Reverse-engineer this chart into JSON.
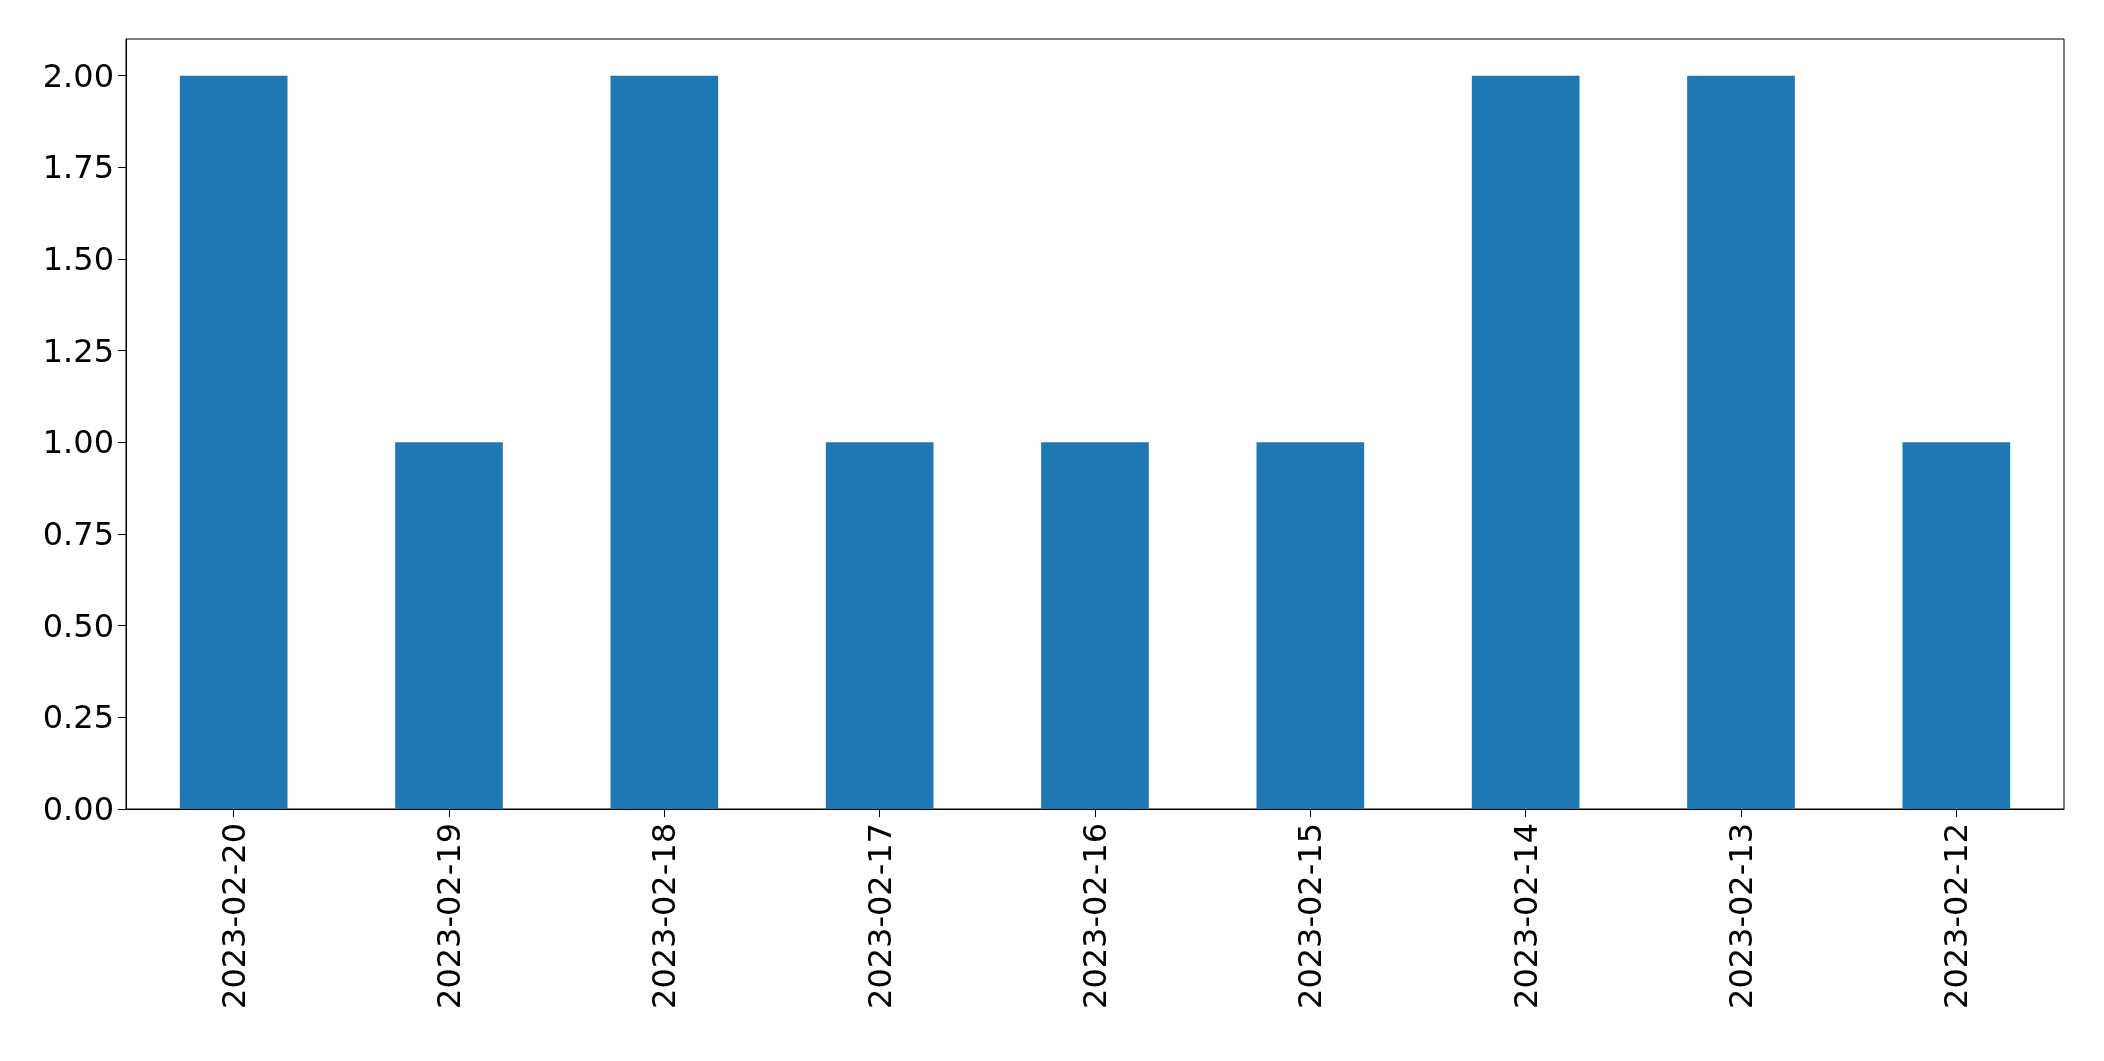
{
  "chart_data": {
    "type": "bar",
    "categories": [
      "2023-02-20",
      "2023-02-19",
      "2023-02-18",
      "2023-02-17",
      "2023-02-16",
      "2023-02-15",
      "2023-02-14",
      "2023-02-13",
      "2023-02-12"
    ],
    "values": [
      2,
      1,
      2,
      1,
      1,
      1,
      2,
      2,
      1
    ],
    "color": "#1f77b4",
    "ylim": [
      0,
      2.1
    ],
    "yticks": [
      {
        "value": 0,
        "label": "0.00"
      },
      {
        "value": 0.25,
        "label": "0.25"
      },
      {
        "value": 0.5,
        "label": "0.50"
      },
      {
        "value": 0.75,
        "label": "0.75"
      },
      {
        "value": 1,
        "label": "1.00"
      },
      {
        "value": 1.25,
        "label": "1.25"
      },
      {
        "value": 1.5,
        "label": "1.50"
      },
      {
        "value": 1.75,
        "label": "1.75"
      },
      {
        "value": 2,
        "label": "2.00"
      }
    ],
    "grid": false
  }
}
